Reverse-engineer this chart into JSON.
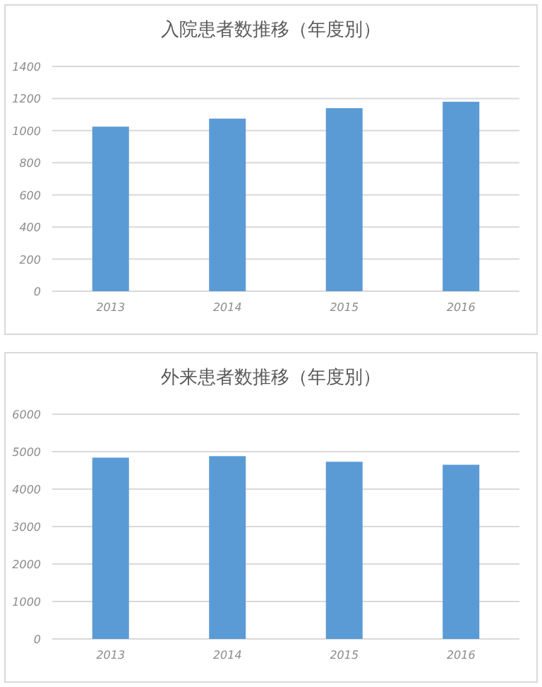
{
  "chart_data": [
    {
      "type": "bar",
      "title": "入院患者数推移（年度別）",
      "categories": [
        "2013",
        "2014",
        "2015",
        "2016"
      ],
      "values": [
        1025,
        1075,
        1140,
        1180
      ],
      "color": "#5b9bd5",
      "ylim": [
        0,
        1400
      ],
      "yticks": [
        0,
        200,
        400,
        600,
        800,
        1000,
        1200,
        1400
      ],
      "grid": "y"
    },
    {
      "type": "bar",
      "title": "外来患者数推移（年度別）",
      "categories": [
        "2013",
        "2014",
        "2015",
        "2016"
      ],
      "values": [
        4840,
        4880,
        4730,
        4650
      ],
      "color": "#5b9bd5",
      "ylim": [
        0,
        6000
      ],
      "yticks": [
        0,
        1000,
        2000,
        3000,
        4000,
        5000,
        6000
      ],
      "grid": "y"
    }
  ]
}
